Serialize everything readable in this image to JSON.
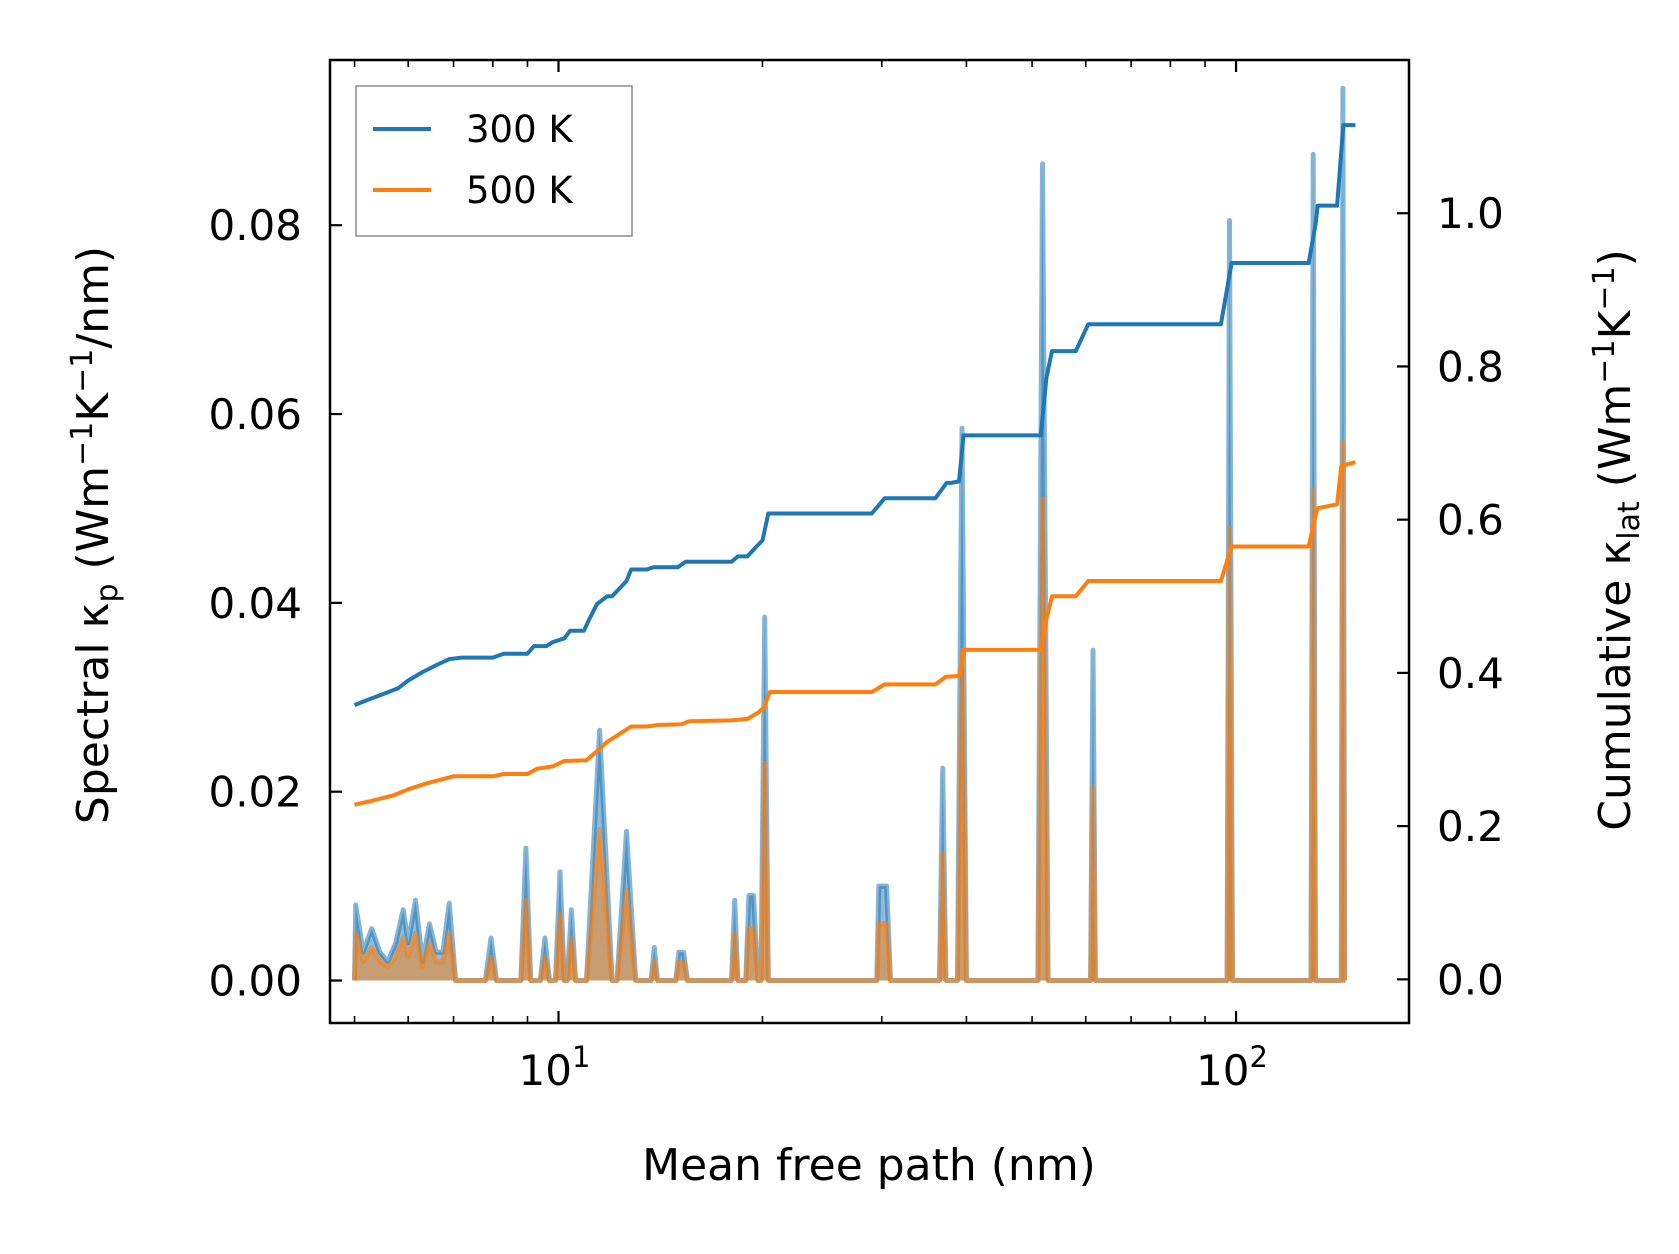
{
  "chart_data": {
    "type": "line",
    "x_scale": "log",
    "xlim": [
      4.6,
      180
    ],
    "ylim_left": [
      -0.0045,
      0.0975
    ],
    "ylim_right": [
      -0.057,
      1.2
    ],
    "xlabel": "Mean free path (nm)",
    "ylabel_left": {
      "main": "Spectral κ",
      "sub": "p",
      "units_pre": " (Wm",
      "sup1": "−1",
      "units_mid": "K",
      "sup2": "−1",
      "units_post": "/nm)"
    },
    "ylabel_right": {
      "main": "Cumulative κ",
      "sub": "lat",
      "units_pre": " (Wm",
      "sup1": "−1",
      "units_mid": "K",
      "sup2": "−1",
      "units_post": ")"
    },
    "x_ticks": [
      {
        "value": 10,
        "base": "10",
        "exp": "1"
      },
      {
        "value": 100,
        "base": "10",
        "exp": "2"
      }
    ],
    "y_left_ticks": [
      {
        "value": 0.0,
        "label": "0.00"
      },
      {
        "value": 0.02,
        "label": "0.02"
      },
      {
        "value": 0.04,
        "label": "0.04"
      },
      {
        "value": 0.06,
        "label": "0.06"
      },
      {
        "value": 0.08,
        "label": "0.08"
      }
    ],
    "y_right_ticks": [
      {
        "value": 0.0,
        "label": "0.0"
      },
      {
        "value": 0.2,
        "label": "0.2"
      },
      {
        "value": 0.4,
        "label": "0.4"
      },
      {
        "value": 0.6,
        "label": "0.6"
      },
      {
        "value": 0.8,
        "label": "0.8"
      },
      {
        "value": 1.0,
        "label": "1.0"
      }
    ],
    "legend": {
      "position": "top-left",
      "entries": [
        {
          "label": "300 K",
          "color": "#1f77b4"
        },
        {
          "label": "500 K",
          "color": "#ff7f0e"
        }
      ]
    },
    "colors": {
      "300K": "#1f77b4",
      "500K": "#ff7f0e",
      "fill_300K": "#1f77b4",
      "fill_500K": "#ff7f0e"
    },
    "series": [
      {
        "name": "300 K",
        "axis": "right",
        "kind": "cumulative",
        "points": [
          [
            5.0,
            0.358
          ],
          [
            5.2,
            0.364
          ],
          [
            5.5,
            0.372
          ],
          [
            5.8,
            0.38
          ],
          [
            6.0,
            0.39
          ],
          [
            6.3,
            0.401
          ],
          [
            6.6,
            0.41
          ],
          [
            6.9,
            0.418
          ],
          [
            7.2,
            0.42
          ],
          [
            8.0,
            0.42
          ],
          [
            8.3,
            0.425
          ],
          [
            9.0,
            0.425
          ],
          [
            9.2,
            0.435
          ],
          [
            9.6,
            0.435
          ],
          [
            9.8,
            0.44
          ],
          [
            10.2,
            0.445
          ],
          [
            10.4,
            0.455
          ],
          [
            10.9,
            0.455
          ],
          [
            11.1,
            0.47
          ],
          [
            11.4,
            0.49
          ],
          [
            11.8,
            0.5
          ],
          [
            12.0,
            0.5
          ],
          [
            12.3,
            0.51
          ],
          [
            12.6,
            0.52
          ],
          [
            12.8,
            0.535
          ],
          [
            13.5,
            0.535
          ],
          [
            13.8,
            0.538
          ],
          [
            15.0,
            0.538
          ],
          [
            15.4,
            0.545
          ],
          [
            17.0,
            0.545
          ],
          [
            18.0,
            0.545
          ],
          [
            18.4,
            0.552
          ],
          [
            19.0,
            0.552
          ],
          [
            19.6,
            0.565
          ],
          [
            20.0,
            0.573
          ],
          [
            20.4,
            0.608
          ],
          [
            25.0,
            0.608
          ],
          [
            29.0,
            0.608
          ],
          [
            30.3,
            0.628
          ],
          [
            31.0,
            0.628
          ],
          [
            36.0,
            0.628
          ],
          [
            37.4,
            0.648
          ],
          [
            38.0,
            0.648
          ],
          [
            39.0,
            0.65
          ],
          [
            39.6,
            0.71
          ],
          [
            50.0,
            0.71
          ],
          [
            51.5,
            0.71
          ],
          [
            52.5,
            0.785
          ],
          [
            53.5,
            0.82
          ],
          [
            58.0,
            0.82
          ],
          [
            60.5,
            0.855
          ],
          [
            63.0,
            0.855
          ],
          [
            95.0,
            0.855
          ],
          [
            98.5,
            0.935
          ],
          [
            128.0,
            0.935
          ],
          [
            131.0,
            0.985
          ],
          [
            132.0,
            1.01
          ],
          [
            141.0,
            1.01
          ],
          [
            144.0,
            1.115
          ],
          [
            150.0,
            1.115
          ]
        ]
      },
      {
        "name": "500 K",
        "axis": "right",
        "kind": "cumulative",
        "points": [
          [
            5.0,
            0.228
          ],
          [
            5.3,
            0.233
          ],
          [
            5.7,
            0.24
          ],
          [
            6.0,
            0.248
          ],
          [
            6.4,
            0.256
          ],
          [
            6.8,
            0.262
          ],
          [
            7.0,
            0.265
          ],
          [
            8.0,
            0.265
          ],
          [
            8.3,
            0.268
          ],
          [
            9.0,
            0.268
          ],
          [
            9.3,
            0.275
          ],
          [
            9.8,
            0.278
          ],
          [
            10.2,
            0.285
          ],
          [
            11.0,
            0.286
          ],
          [
            11.3,
            0.295
          ],
          [
            11.8,
            0.31
          ],
          [
            12.2,
            0.318
          ],
          [
            12.8,
            0.33
          ],
          [
            13.5,
            0.33
          ],
          [
            14.0,
            0.332
          ],
          [
            15.2,
            0.333
          ],
          [
            15.6,
            0.337
          ],
          [
            18.0,
            0.338
          ],
          [
            19.0,
            0.34
          ],
          [
            19.7,
            0.348
          ],
          [
            20.1,
            0.355
          ],
          [
            20.5,
            0.375
          ],
          [
            25.0,
            0.375
          ],
          [
            29.0,
            0.375
          ],
          [
            30.3,
            0.385
          ],
          [
            31.5,
            0.385
          ],
          [
            36.0,
            0.385
          ],
          [
            37.3,
            0.395
          ],
          [
            39.0,
            0.396
          ],
          [
            39.7,
            0.43
          ],
          [
            50.0,
            0.43
          ],
          [
            51.5,
            0.43
          ],
          [
            52.5,
            0.47
          ],
          [
            53.5,
            0.5
          ],
          [
            58.0,
            0.5
          ],
          [
            60.5,
            0.52
          ],
          [
            63.0,
            0.52
          ],
          [
            95.0,
            0.52
          ],
          [
            98.5,
            0.565
          ],
          [
            128.0,
            0.565
          ],
          [
            131.0,
            0.605
          ],
          [
            132.0,
            0.615
          ],
          [
            141.0,
            0.62
          ],
          [
            143.0,
            0.67
          ],
          [
            150.0,
            0.675
          ]
        ]
      },
      {
        "name": "300 K spectral",
        "axis": "left",
        "kind": "spectral",
        "points": [
          [
            5.0,
            0.0
          ],
          [
            5.02,
            0.008
          ],
          [
            5.15,
            0.003
          ],
          [
            5.3,
            0.0055
          ],
          [
            5.45,
            0.003
          ],
          [
            5.6,
            0.002
          ],
          [
            5.75,
            0.004
          ],
          [
            5.9,
            0.0075
          ],
          [
            6.0,
            0.004
          ],
          [
            6.15,
            0.0085
          ],
          [
            6.3,
            0.002
          ],
          [
            6.45,
            0.006
          ],
          [
            6.6,
            0.003
          ],
          [
            6.75,
            0.003
          ],
          [
            6.9,
            0.0082
          ],
          [
            7.05,
            0.0
          ],
          [
            7.8,
            0.0
          ],
          [
            7.95,
            0.0045
          ],
          [
            8.1,
            0.0
          ],
          [
            8.8,
            0.0
          ],
          [
            8.95,
            0.014
          ],
          [
            9.1,
            0.0
          ],
          [
            9.4,
            0.0
          ],
          [
            9.55,
            0.0045
          ],
          [
            9.7,
            0.0
          ],
          [
            9.9,
            0.0
          ],
          [
            10.05,
            0.0115
          ],
          [
            10.2,
            0.0
          ],
          [
            10.3,
            0.0
          ],
          [
            10.45,
            0.0075
          ],
          [
            10.6,
            0.0
          ],
          [
            11.0,
            0.0
          ],
          [
            11.5,
            0.0265
          ],
          [
            12.0,
            0.0
          ],
          [
            12.2,
            0.0
          ],
          [
            12.6,
            0.0158
          ],
          [
            13.0,
            0.0
          ],
          [
            13.7,
            0.0
          ],
          [
            13.85,
            0.0035
          ],
          [
            14.0,
            0.0
          ],
          [
            14.9,
            0.0
          ],
          [
            15.05,
            0.003
          ],
          [
            15.3,
            0.003
          ],
          [
            15.5,
            0.0
          ],
          [
            18.0,
            0.0
          ],
          [
            18.2,
            0.0085
          ],
          [
            18.4,
            0.0
          ],
          [
            18.9,
            0.0
          ],
          [
            19.1,
            0.009
          ],
          [
            19.4,
            0.009
          ],
          [
            19.7,
            0.0
          ],
          [
            19.9,
            0.0
          ],
          [
            20.15,
            0.0385
          ],
          [
            20.4,
            0.0
          ],
          [
            29.5,
            0.0
          ],
          [
            29.7,
            0.01
          ],
          [
            30.5,
            0.01
          ],
          [
            30.9,
            0.0
          ],
          [
            36.5,
            0.0
          ],
          [
            36.9,
            0.0225
          ],
          [
            37.3,
            0.0
          ],
          [
            38.8,
            0.0
          ],
          [
            39.4,
            0.0585
          ],
          [
            40.0,
            0.0
          ],
          [
            51.0,
            0.0
          ],
          [
            51.8,
            0.0865
          ],
          [
            52.8,
            0.0
          ],
          [
            61.0,
            0.0
          ],
          [
            61.5,
            0.035
          ],
          [
            62.0,
            0.0
          ],
          [
            97.0,
            0.0
          ],
          [
            97.8,
            0.0805
          ],
          [
            98.8,
            0.0
          ],
          [
            129.0,
            0.0
          ],
          [
            130.0,
            0.0875
          ],
          [
            131.0,
            0.0
          ],
          [
            143.0,
            0.0
          ],
          [
            143.8,
            0.0945
          ],
          [
            144.6,
            0.0
          ],
          [
            145.0,
            0.0
          ]
        ]
      },
      {
        "name": "500 K spectral",
        "axis": "left",
        "kind": "spectral",
        "points": [
          [
            5.0,
            0.0
          ],
          [
            5.02,
            0.005
          ],
          [
            5.15,
            0.002
          ],
          [
            5.3,
            0.0035
          ],
          [
            5.45,
            0.002
          ],
          [
            5.6,
            0.0015
          ],
          [
            5.75,
            0.0025
          ],
          [
            5.9,
            0.0045
          ],
          [
            6.0,
            0.0025
          ],
          [
            6.15,
            0.005
          ],
          [
            6.3,
            0.0015
          ],
          [
            6.45,
            0.004
          ],
          [
            6.6,
            0.002
          ],
          [
            6.75,
            0.002
          ],
          [
            6.9,
            0.005
          ],
          [
            7.05,
            0.0
          ],
          [
            7.8,
            0.0
          ],
          [
            7.95,
            0.0025
          ],
          [
            8.1,
            0.0
          ],
          [
            8.8,
            0.0
          ],
          [
            8.95,
            0.0085
          ],
          [
            9.1,
            0.0
          ],
          [
            9.4,
            0.0
          ],
          [
            9.55,
            0.0025
          ],
          [
            9.7,
            0.0
          ],
          [
            9.9,
            0.0
          ],
          [
            10.05,
            0.007
          ],
          [
            10.2,
            0.0
          ],
          [
            10.3,
            0.0
          ],
          [
            10.45,
            0.0045
          ],
          [
            10.6,
            0.0
          ],
          [
            11.0,
            0.0
          ],
          [
            11.5,
            0.016
          ],
          [
            12.0,
            0.0
          ],
          [
            12.2,
            0.0
          ],
          [
            12.6,
            0.0095
          ],
          [
            13.0,
            0.0
          ],
          [
            13.7,
            0.0
          ],
          [
            13.85,
            0.002
          ],
          [
            14.0,
            0.0
          ],
          [
            14.9,
            0.0
          ],
          [
            15.05,
            0.002
          ],
          [
            15.3,
            0.002
          ],
          [
            15.5,
            0.0
          ],
          [
            18.0,
            0.0
          ],
          [
            18.2,
            0.005
          ],
          [
            18.4,
            0.0
          ],
          [
            18.9,
            0.0
          ],
          [
            19.1,
            0.0055
          ],
          [
            19.4,
            0.0055
          ],
          [
            19.7,
            0.0
          ],
          [
            19.9,
            0.0
          ],
          [
            20.15,
            0.023
          ],
          [
            20.4,
            0.0
          ],
          [
            29.5,
            0.0
          ],
          [
            29.7,
            0.006
          ],
          [
            30.5,
            0.006
          ],
          [
            30.9,
            0.0
          ],
          [
            36.5,
            0.0
          ],
          [
            36.9,
            0.0135
          ],
          [
            37.3,
            0.0
          ],
          [
            38.8,
            0.0
          ],
          [
            39.4,
            0.035
          ],
          [
            40.0,
            0.0
          ],
          [
            51.0,
            0.0
          ],
          [
            51.8,
            0.051
          ],
          [
            52.8,
            0.0
          ],
          [
            61.0,
            0.0
          ],
          [
            61.5,
            0.0205
          ],
          [
            62.0,
            0.0
          ],
          [
            97.0,
            0.0
          ],
          [
            97.8,
            0.048
          ],
          [
            98.8,
            0.0
          ],
          [
            129.0,
            0.0
          ],
          [
            130.0,
            0.052
          ],
          [
            131.0,
            0.0
          ],
          [
            143.0,
            0.0
          ],
          [
            143.8,
            0.057
          ],
          [
            144.6,
            0.0
          ],
          [
            145.0,
            0.0
          ]
        ]
      }
    ]
  }
}
